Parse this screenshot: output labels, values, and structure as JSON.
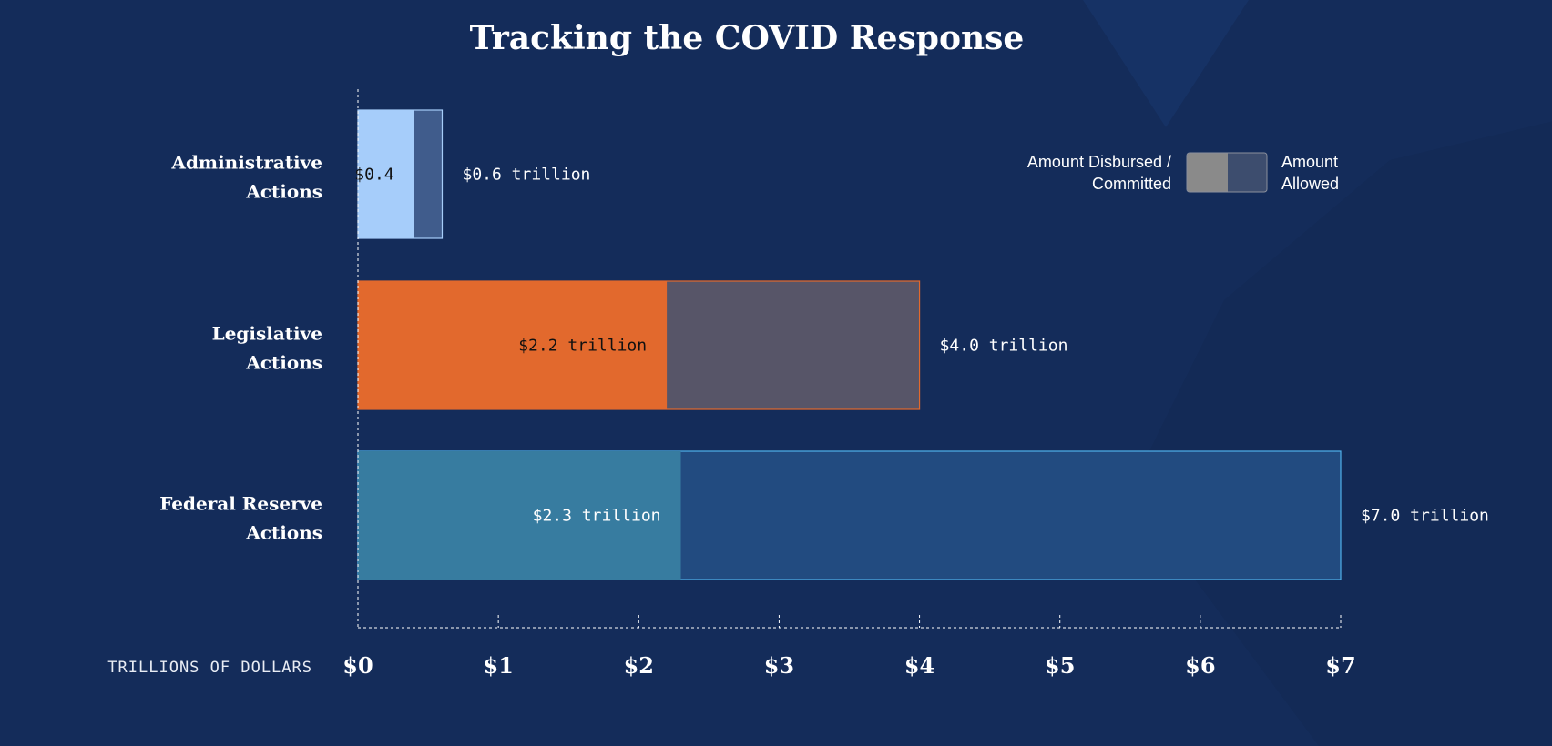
{
  "chart_data": {
    "type": "bar",
    "orientation": "horizontal",
    "stacked_overlay": true,
    "title": "Tracking the COVID Response",
    "xlabel": "TRILLIONS OF DOLLARS",
    "ylabel": "",
    "xlim": [
      0,
      7
    ],
    "x_ticks": [
      0,
      1,
      2,
      3,
      4,
      5,
      6,
      7
    ],
    "x_tick_labels": [
      "$0",
      "$1",
      "$2",
      "$3",
      "$4",
      "$5",
      "$6",
      "$7"
    ],
    "grid": false,
    "categories": [
      [
        "Administrative",
        "Actions"
      ],
      [
        "Legislative",
        "Actions"
      ],
      [
        "Federal Reserve",
        "Actions"
      ]
    ],
    "series": [
      {
        "name": "Amount Disbursed / Committed",
        "values": [
          0.4,
          2.2,
          2.3
        ],
        "labels": [
          "$0.4",
          "$2.2 trillion",
          "$2.3 trillion"
        ]
      },
      {
        "name": "Amount Allowed",
        "values": [
          0.6,
          4.0,
          7.0
        ],
        "labels": [
          "$0.6 trillion",
          "$4.0 trillion",
          "$7.0 trillion"
        ]
      }
    ],
    "colors": {
      "disbursed": [
        "#a6cdfa",
        "#e2692d",
        "#377ca0"
      ],
      "allowed_fill": [
        "#405c8c",
        "#575568",
        "#224b80"
      ],
      "allowed_border": [
        "#a6cdfa",
        "#e2692d",
        "#4fb0ea"
      ],
      "disbursed_label": [
        "#111111",
        "#111111",
        "#ffffff"
      ]
    },
    "legend": {
      "placement": "top-right",
      "left_label": [
        "Amount Disbursed /",
        "Committed"
      ],
      "right_label": [
        "Amount",
        "Allowed"
      ],
      "swatch_left": "#8a8a8a",
      "swatch_right": "#3d4d6e"
    }
  }
}
